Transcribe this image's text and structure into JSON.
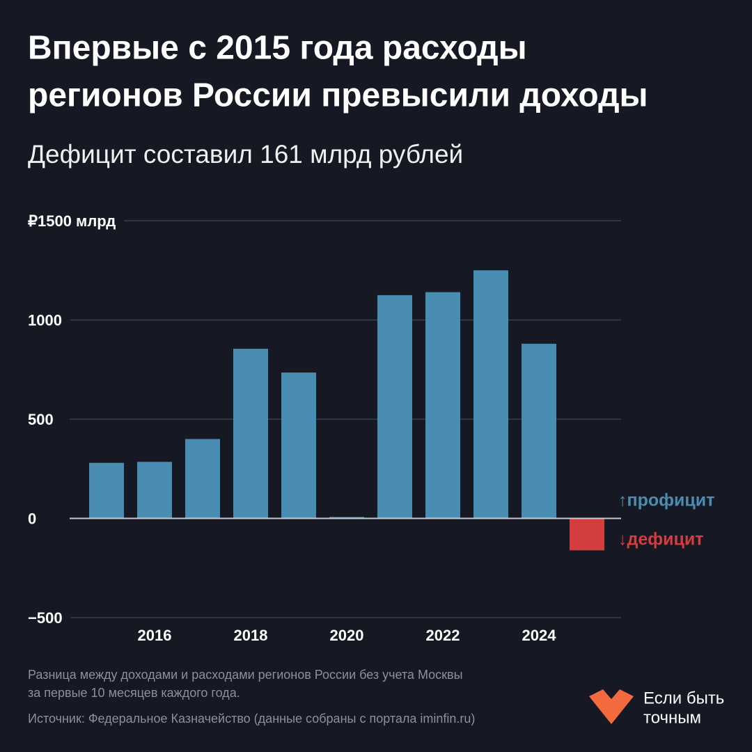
{
  "chart_data": {
    "type": "bar",
    "title": [
      "Впервые с 2015 года расходы",
      "регионов России превысили доходы"
    ],
    "subtitle": "Дефицит составил 161 млрд рублей",
    "categories": [
      null,
      "2016",
      null,
      "2018",
      null,
      "2020",
      null,
      "2022",
      null,
      "2024",
      null
    ],
    "values": [
      280,
      285,
      400,
      855,
      735,
      7,
      1125,
      1140,
      1250,
      880,
      -161
    ],
    "color": "#4a8db2",
    "negative_color": "#d43d3d",
    "ylim": [
      -500,
      1500
    ],
    "yticks": [
      {
        "value": -500,
        "label": "−500"
      },
      0,
      500,
      1000,
      {
        "value": 1500,
        "label": "₽1500 млрд"
      }
    ],
    "grid": true,
    "annotations": [
      {
        "text": "↑профицит",
        "color": "#4a8db2"
      },
      {
        "text": "↓дефицит",
        "color": "#d43d3d"
      }
    ],
    "notes": [
      "Разница между доходами и расходами регионов России без учета Москвы",
      "за первые 10 месяцев каждого года."
    ],
    "source": "Источник: Федеральное Казначейство (данные собраны с портала iminfin.ru)",
    "brand": [
      "Если быть",
      "точным"
    ]
  }
}
